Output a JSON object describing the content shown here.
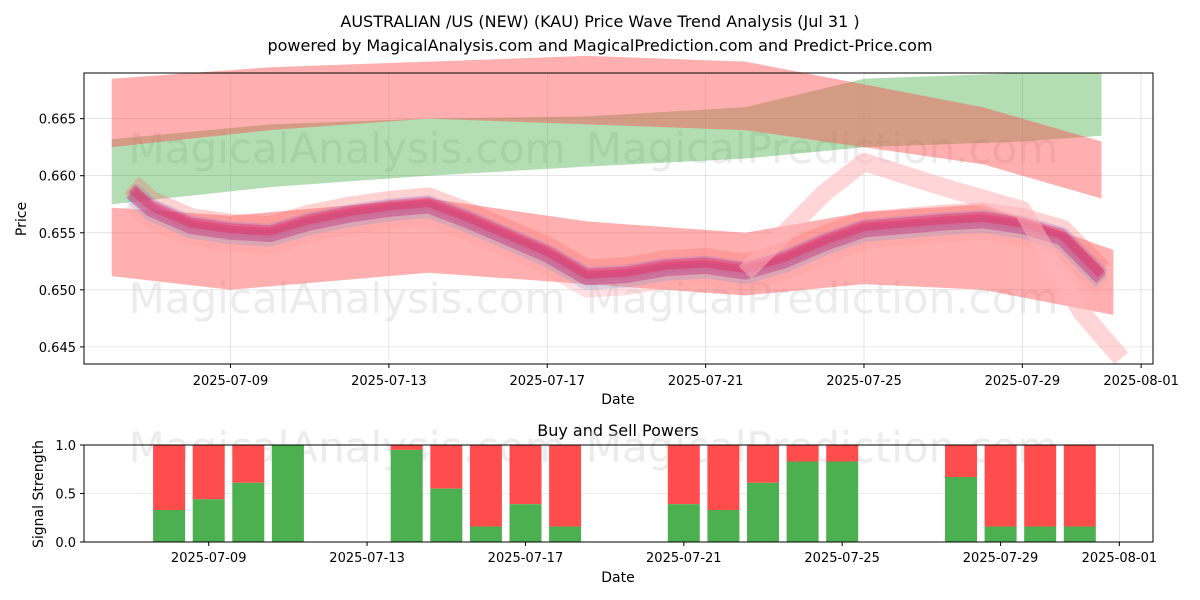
{
  "header": {
    "title": "AUSTRALIAN /US (NEW) (KAU) Price Wave Trend Analysis (Jul 31 )",
    "subtitle": "powered by MagicalAnalysis.com and MagicalPrediction.com and Predict-Price.com"
  },
  "watermarks": [
    "MagicalAnalysis.com",
    "MagicalPrediction.com"
  ],
  "colors": {
    "green_band": "#2ca02c",
    "red_band": "#ff4d4d",
    "brown_band": "#8c4a1a",
    "buy": "#4caf50",
    "sell": "#ff4d4d"
  },
  "chart_data": [
    {
      "type": "area",
      "title": "",
      "xlabel": "Date",
      "ylabel": "Price",
      "xlim": [
        "2025-07-05.3",
        "2025-08-01.3"
      ],
      "ylim": [
        0.6435,
        0.669
      ],
      "xticks": [
        "2025-07-09",
        "2025-07-13",
        "2025-07-17",
        "2025-07-21",
        "2025-07-25",
        "2025-07-29",
        "2025-08-01"
      ],
      "yticks": [
        "0.645",
        "0.650",
        "0.655",
        "0.660",
        "0.665"
      ],
      "grid": true,
      "series": [
        {
          "kind": "band",
          "color": "green",
          "x": [
            "2025-07-06",
            "2025-07-10",
            "2025-07-14",
            "2025-07-18",
            "2025-07-22",
            "2025-07-25",
            "2025-07-29",
            "2025-07-31"
          ],
          "upper": [
            0.6632,
            0.6645,
            0.665,
            0.6652,
            0.666,
            0.6685,
            0.669,
            0.669
          ],
          "lower": [
            0.6575,
            0.659,
            0.66,
            0.6608,
            0.6615,
            0.6625,
            0.663,
            0.6635
          ]
        },
        {
          "kind": "band",
          "color": "red",
          "x": [
            "2025-07-06",
            "2025-07-10",
            "2025-07-14",
            "2025-07-18",
            "2025-07-22",
            "2025-07-25",
            "2025-07-28",
            "2025-07-31"
          ],
          "upper": [
            0.6685,
            0.6695,
            0.67,
            0.6705,
            0.67,
            0.668,
            0.666,
            0.663
          ],
          "lower": [
            0.6625,
            0.664,
            0.665,
            0.6645,
            0.664,
            0.6625,
            0.661,
            0.658
          ]
        },
        {
          "kind": "band",
          "color": "red",
          "x": [
            "2025-07-06",
            "2025-07-09",
            "2025-07-14",
            "2025-07-18",
            "2025-07-22",
            "2025-07-25",
            "2025-07-28",
            "2025-07-31.3"
          ],
          "upper": [
            0.6572,
            0.6565,
            0.658,
            0.656,
            0.655,
            0.6568,
            0.6575,
            0.6535
          ],
          "lower": [
            0.6512,
            0.65,
            0.6515,
            0.6505,
            0.6495,
            0.6505,
            0.65,
            0.6478
          ]
        },
        {
          "kind": "line",
          "name": "",
          "x": [
            "2025-07-06.5",
            "2025-07-07",
            "2025-07-08",
            "2025-07-09",
            "2025-07-10",
            "2025-07-11",
            "2025-07-12",
            "2025-07-13",
            "2025-07-14",
            "2025-07-15",
            "2025-07-16",
            "2025-07-17",
            "2025-07-18",
            "2025-07-19",
            "2025-07-20",
            "2025-07-21",
            "2025-07-22",
            "2025-07-23",
            "2025-07-24",
            "2025-07-25",
            "2025-07-26",
            "2025-07-27",
            "2025-07-28",
            "2025-07-29",
            "2025-07-30",
            "2025-07-31"
          ],
          "y": [
            0.6585,
            0.657,
            0.6555,
            0.655,
            0.6548,
            0.6558,
            0.6565,
            0.657,
            0.6573,
            0.656,
            0.6545,
            0.653,
            0.651,
            0.6512,
            0.6518,
            0.652,
            0.6515,
            0.6525,
            0.654,
            0.6552,
            0.6555,
            0.6558,
            0.656,
            0.6555,
            0.6545,
            0.651
          ]
        }
      ]
    },
    {
      "type": "bar",
      "title": "Buy and Sell Powers",
      "xlabel": "Date",
      "ylabel": "Signal Strength",
      "ylim": [
        0,
        1
      ],
      "yticks": [
        "0.0",
        "0.5",
        "1.0"
      ],
      "xticks": [
        "2025-07-09",
        "2025-07-13",
        "2025-07-17",
        "2025-07-21",
        "2025-07-25",
        "2025-07-29",
        "2025-08-01"
      ],
      "x": [
        "2025-07-08",
        "2025-07-09",
        "2025-07-10",
        "2025-07-11",
        "2025-07-14",
        "2025-07-15",
        "2025-07-16",
        "2025-07-17",
        "2025-07-18",
        "2025-07-21",
        "2025-07-22",
        "2025-07-23",
        "2025-07-24",
        "2025-07-25",
        "2025-07-28",
        "2025-07-29",
        "2025-07-30",
        "2025-07-31"
      ],
      "buy": [
        0.33,
        0.44,
        0.61,
        1.0,
        0.95,
        0.55,
        0.16,
        0.39,
        0.16,
        0.39,
        0.33,
        0.61,
        0.83,
        0.83,
        0.67,
        0.16,
        0.16,
        0.16
      ],
      "sell": [
        0.67,
        0.56,
        0.39,
        0.0,
        0.05,
        0.45,
        0.84,
        0.61,
        0.84,
        0.61,
        0.67,
        0.39,
        0.17,
        0.17,
        0.33,
        0.84,
        0.84,
        0.84
      ]
    }
  ]
}
